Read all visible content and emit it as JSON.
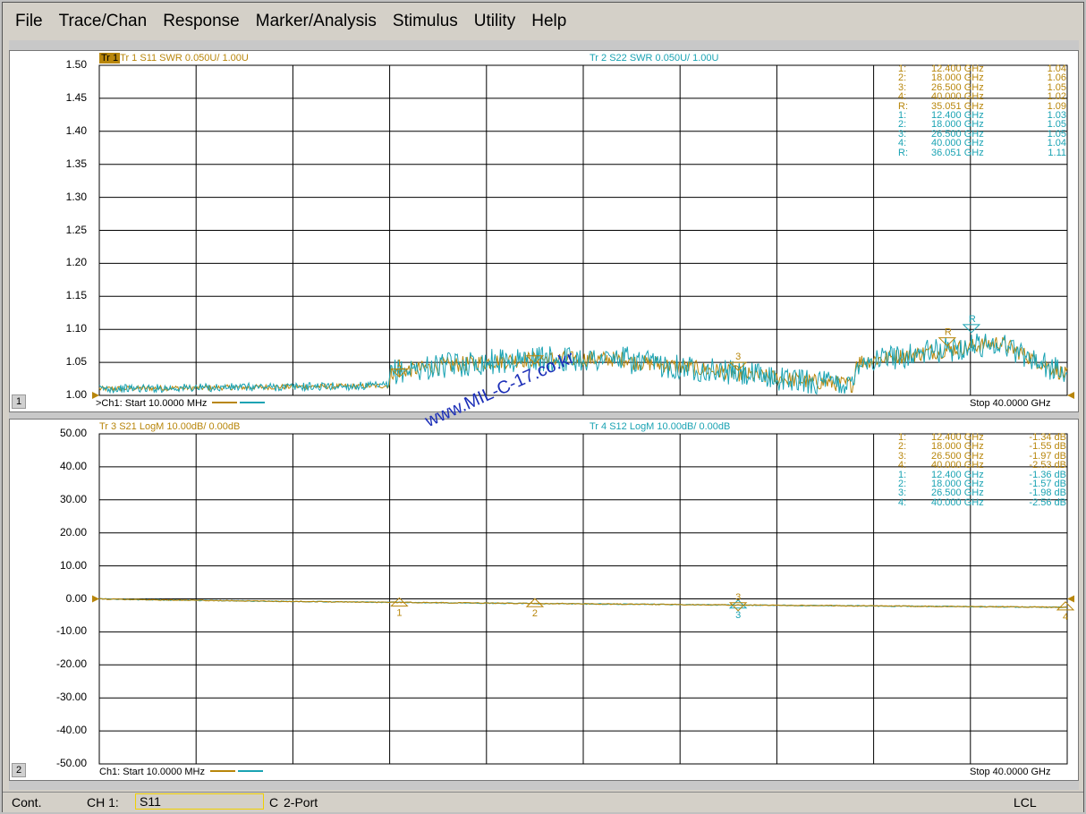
{
  "menu": [
    "File",
    "Trace/Chan",
    "Response",
    "Marker/Analysis",
    "Stimulus",
    "Utility",
    "Help"
  ],
  "colors": {
    "trace_a": "#b8860b",
    "trace_b": "#1aa3b3",
    "grid": "#000000",
    "watermark": "#1c2fb8"
  },
  "panel1": {
    "number": "1",
    "trace1_title": "Tr 1  S11 SWR 0.050U/  1.00U",
    "trace2_title": "Tr 2  S22 SWR 0.050U/  1.00U",
    "y_labels": [
      "1.50",
      "1.45",
      "1.40",
      "1.35",
      "1.30",
      "1.25",
      "1.20",
      "1.15",
      "1.10",
      "1.05",
      "1.00"
    ],
    "footer_start": ">Ch1:  Start  10.0000 MHz",
    "footer_stop": "Stop  40.0000 GHz",
    "markers": [
      {
        "id": "1:",
        "freq": "12.400 GHz",
        "val": "1.04",
        "trace": "a"
      },
      {
        "id": "2:",
        "freq": "18.000 GHz",
        "val": "1.06",
        "trace": "a"
      },
      {
        "id": "3:",
        "freq": "26.500 GHz",
        "val": "1.05",
        "trace": "a"
      },
      {
        "id": "4:",
        "freq": "40.000 GHz",
        "val": "1.02",
        "trace": "a"
      },
      {
        "id": "R:",
        "freq": "35.051 GHz",
        "val": "1.09",
        "trace": "a"
      },
      {
        "id": "1:",
        "freq": "12.400 GHz",
        "val": "1.03",
        "trace": "b"
      },
      {
        "id": "2:",
        "freq": "18.000 GHz",
        "val": "1.05",
        "trace": "b"
      },
      {
        "id": "3:",
        "freq": "26.500 GHz",
        "val": "1.05",
        "trace": "b"
      },
      {
        "id": "4:",
        "freq": "40.000 GHz",
        "val": "1.04",
        "trace": "b"
      },
      {
        "id": "R:",
        "freq": "36.051 GHz",
        "val": "1.11",
        "trace": "b"
      }
    ]
  },
  "panel2": {
    "number": "2",
    "trace3_title": "Tr 3  S21 LogM 10.00dB/  0.00dB",
    "trace4_title": "Tr 4  S12 LogM 10.00dB/  0.00dB",
    "y_labels": [
      "50.00",
      "40.00",
      "30.00",
      "20.00",
      "10.00",
      "0.00",
      "-10.00",
      "-20.00",
      "-30.00",
      "-40.00",
      "-50.00"
    ],
    "footer_start": "Ch1:  Start  10.0000 MHz",
    "footer_stop": "Stop  40.0000 GHz",
    "markers": [
      {
        "id": "1:",
        "freq": "12.400 GHz",
        "val": "-1.34 dB",
        "trace": "a"
      },
      {
        "id": "2:",
        "freq": "18.000 GHz",
        "val": "-1.55 dB",
        "trace": "a"
      },
      {
        "id": "3:",
        "freq": "26.500 GHz",
        "val": "-1.97 dB",
        "trace": "a"
      },
      {
        "id": "4:",
        "freq": "40.000 GHz",
        "val": "-2.53 dB",
        "trace": "a"
      },
      {
        "id": "1:",
        "freq": "12.400 GHz",
        "val": "-1.36 dB",
        "trace": "b"
      },
      {
        "id": "2:",
        "freq": "18.000 GHz",
        "val": "-1.57 dB",
        "trace": "b"
      },
      {
        "id": "3:",
        "freq": "26.500 GHz",
        "val": "-1.98 dB",
        "trace": "b"
      },
      {
        "id": "4:",
        "freq": "40.000 GHz",
        "val": "-2.56 dB",
        "trace": "b"
      }
    ]
  },
  "marker_flags": {
    "one": "1",
    "two": "2",
    "three": "3",
    "four": "4",
    "ref": "R"
  },
  "status": {
    "mode": "Cont.",
    "channel": "CH 1:",
    "param": "S11",
    "cal": "C",
    "ports": "2-Port",
    "lcl": "LCL"
  },
  "watermark": "www.MIL-C-17.co.kr"
}
